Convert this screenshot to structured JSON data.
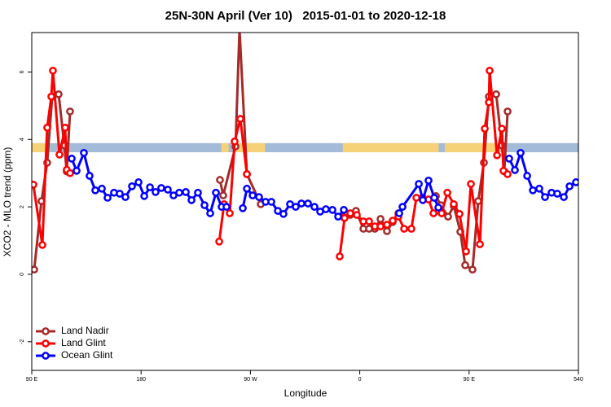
{
  "chart_data": {
    "type": "line",
    "title": "25N-30N April (Ver 10)   2015-01-01 to 2020-12-18",
    "xlabel": "Longitude",
    "ylabel": "XCO2 - MLO trend (ppm)",
    "xlim": [
      90,
      540
    ],
    "ylim": [
      -2.85,
      7.17
    ],
    "xticks": [
      {
        "value": 90,
        "label": "90 E"
      },
      180,
      {
        "value": 270,
        "label": "90 W"
      },
      {
        "value": 360,
        "label": "0"
      },
      {
        "value": 450,
        "label": "90 E"
      },
      540
    ],
    "yticks": [
      -2,
      0,
      2,
      4,
      6
    ],
    "grid": false,
    "legend": "bottom-left",
    "land_mask": {
      "ylim": [
        3.62,
        3.89
      ],
      "land_color": "#f5d277",
      "ocean_color": "#a4bad9",
      "ranges": [
        [
          90,
          105
        ],
        [
          246,
          252
        ],
        [
          257,
          282
        ],
        [
          346,
          425
        ],
        [
          430,
          476
        ]
      ]
    },
    "series": [
      {
        "name": "Land Nadir",
        "color": "#a52a2a",
        "x": [
          92.0,
          98.0,
          102.7,
          106.8,
          112.1,
          116.8,
          118.8,
          121.5,
          null,
          244.9,
          247.6,
          257.7,
          261.0,
          267.1,
          278.5,
          null,
          346.9,
          352.2,
          356.9,
          363.0,
          367.7,
          372.4,
          377.1,
          382.4,
          387.1,
          391.8,
          null,
          422.7,
          426.7,
          432.7,
          437.4,
          442.8,
          446.8,
          452.8,
          457.5,
          462.2,
          466.3,
          472.3,
          477.0,
          479.0,
          481.7
        ],
        "values": [
          0.14,
          2.17,
          3.31,
          5.27,
          5.34,
          3.82,
          3.05,
          4.83,
          null,
          2.8,
          2.34,
          3.79,
          7.27,
          2.97,
          2.08,
          null,
          1.69,
          1.76,
          1.88,
          1.35,
          1.35,
          1.35,
          1.64,
          1.28,
          1.55,
          1.81,
          null,
          2.32,
          2.05,
          1.71,
          2.03,
          1.26,
          0.27,
          0.14,
          2.17,
          3.31,
          5.27,
          5.34,
          3.82,
          3.05,
          4.83
        ]
      },
      {
        "name": "Land Glint",
        "color": "#ff0000",
        "x": [
          91.3,
          98.7,
          102.7,
          106.1,
          107.4,
          112.8,
          117.5,
          118.8,
          121.5,
          null,
          244.3,
          248.3,
          253.0,
          257.0,
          261.7,
          267.1,
          null,
          343.5,
          347.5,
          352.2,
          357.6,
          363.0,
          367.7,
          372.4,
          377.1,
          382.4,
          387.1,
          391.8,
          396.5,
          402.5,
          406.6,
          411.9,
          416.6,
          420.7,
          427.4,
          432.1,
          437.4,
          442.1,
          447.5,
          451.5,
          458.9,
          462.9,
          466.3,
          466.9,
          473.0,
          477.0,
          478.3,
          481.7
        ],
        "values": [
          2.66,
          0.87,
          4.35,
          5.27,
          6.04,
          3.55,
          4.35,
          3.1,
          3.0,
          null,
          0.97,
          2.08,
          1.81,
          3.94,
          4.61,
          2.97,
          null,
          0.53,
          1.67,
          1.81,
          1.76,
          1.57,
          1.57,
          1.42,
          1.42,
          1.47,
          1.59,
          1.71,
          1.35,
          1.35,
          2.27,
          2.27,
          2.22,
          1.81,
          1.81,
          2.42,
          2.08,
          1.79,
          0.68,
          2.68,
          0.89,
          4.32,
          5.1,
          6.04,
          3.53,
          4.32,
          3.07,
          2.97
        ]
      },
      {
        "name": "Ocean Glint",
        "color": "#0000ff",
        "x": [
          122.9,
          126.9,
          132.9,
          137.6,
          142.3,
          147.7,
          152.4,
          157.7,
          162.4,
          167.1,
          172.5,
          177.9,
          182.6,
          187.3,
          191.9,
          196.6,
          202.0,
          206.7,
          211.4,
          216.8,
          221.5,
          226.8,
          232.2,
          236.9,
          241.6,
          246.3,
          250.3,
          null,
          263.7,
          267.1,
          271.8,
          277.1,
          282.5,
          287.2,
          292.6,
          297.2,
          302.6,
          307.3,
          312.0,
          317.4,
          322.7,
          327.4,
          332.1,
          337.5,
          342.2,
          346.9,
          null,
          392.5,
          395.2,
          408.6,
          411.9,
          416.6,
          421.3,
          424.7,
          null,
          483.0,
          487.7,
          492.4,
          497.8,
          502.5,
          507.8,
          512.5,
          517.9,
          522.6,
          528.0,
          532.7,
          538.0
        ],
        "values": [
          3.43,
          3.07,
          3.6,
          2.92,
          2.49,
          2.54,
          2.27,
          2.42,
          2.39,
          2.29,
          2.61,
          2.73,
          2.32,
          2.58,
          2.44,
          2.56,
          2.51,
          2.34,
          2.42,
          2.44,
          2.2,
          2.42,
          2.05,
          1.81,
          2.42,
          2.0,
          2.0,
          null,
          1.96,
          2.54,
          2.34,
          2.29,
          2.15,
          2.15,
          1.88,
          1.79,
          2.08,
          2.0,
          2.1,
          2.1,
          2.0,
          1.86,
          1.93,
          1.91,
          1.71,
          1.91,
          null,
          1.81,
          2.0,
          2.68,
          2.2,
          2.78,
          2.27,
          1.98,
          null,
          3.43,
          3.09,
          3.6,
          2.92,
          2.49,
          2.54,
          2.29,
          2.42,
          2.39,
          2.29,
          2.61,
          2.73
        ]
      }
    ]
  }
}
